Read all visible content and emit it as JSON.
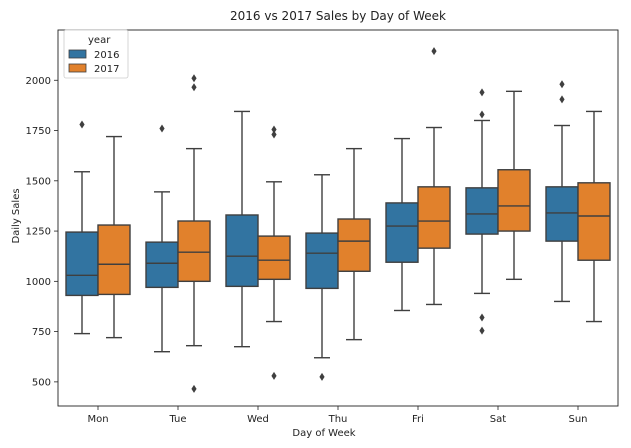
{
  "chart_data": {
    "type": "boxplot",
    "title": "2016 vs 2017 Sales by Day of Week",
    "xlabel": "Day of Week",
    "ylabel": "Daily Sales",
    "ylim": [
      380,
      2250
    ],
    "yticks": [
      500,
      750,
      1000,
      1250,
      1500,
      1750,
      2000
    ],
    "legend": {
      "title": "year",
      "position": "top-left"
    },
    "categories": [
      "Mon",
      "Tue",
      "Wed",
      "Thu",
      "Fri",
      "Sat",
      "Sun"
    ],
    "series": [
      {
        "name": "2016",
        "color": "#3274a1",
        "boxes": [
          {
            "whislo": 740,
            "q1": 930,
            "med": 1030,
            "q3": 1245,
            "whishi": 1545,
            "fliers": [
              1780
            ]
          },
          {
            "whislo": 650,
            "q1": 970,
            "med": 1090,
            "q3": 1195,
            "whishi": 1445,
            "fliers": [
              1760
            ]
          },
          {
            "whislo": 675,
            "q1": 975,
            "med": 1125,
            "q3": 1330,
            "whishi": 1845,
            "fliers": []
          },
          {
            "whislo": 620,
            "q1": 965,
            "med": 1140,
            "q3": 1240,
            "whishi": 1530,
            "fliers": [
              525
            ]
          },
          {
            "whislo": 855,
            "q1": 1095,
            "med": 1275,
            "q3": 1390,
            "whishi": 1710,
            "fliers": []
          },
          {
            "whislo": 940,
            "q1": 1235,
            "med": 1335,
            "q3": 1465,
            "whishi": 1800,
            "fliers": [
              820,
              755,
              1830,
              1940
            ]
          },
          {
            "whislo": 900,
            "q1": 1200,
            "med": 1340,
            "q3": 1470,
            "whishi": 1775,
            "fliers": [
              1905,
              1980
            ]
          }
        ]
      },
      {
        "name": "2017",
        "color": "#e1812c",
        "boxes": [
          {
            "whislo": 720,
            "q1": 935,
            "med": 1085,
            "q3": 1280,
            "whishi": 1720,
            "fliers": []
          },
          {
            "whislo": 680,
            "q1": 1000,
            "med": 1145,
            "q3": 1300,
            "whishi": 1660,
            "fliers": [
              1965,
              2010,
              465
            ]
          },
          {
            "whislo": 800,
            "q1": 1010,
            "med": 1105,
            "q3": 1225,
            "whishi": 1495,
            "fliers": [
              1730,
              1755,
              530
            ]
          },
          {
            "whislo": 710,
            "q1": 1050,
            "med": 1200,
            "q3": 1310,
            "whishi": 1660,
            "fliers": []
          },
          {
            "whislo": 885,
            "q1": 1165,
            "med": 1300,
            "q3": 1470,
            "whishi": 1765,
            "fliers": [
              2145
            ]
          },
          {
            "whislo": 1010,
            "q1": 1250,
            "med": 1375,
            "q3": 1555,
            "whishi": 1945,
            "fliers": []
          },
          {
            "whislo": 800,
            "q1": 1105,
            "med": 1325,
            "q3": 1490,
            "whishi": 1845,
            "fliers": []
          }
        ]
      }
    ]
  }
}
